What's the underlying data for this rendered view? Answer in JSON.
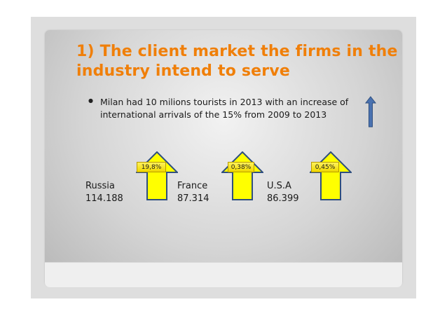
{
  "slide": {
    "title": "1) The client market the firms in the industry intend to serve",
    "bullet": "Milan had 10 milions tourists  in 2013 with an increase of international arrivals of the 15% from 2009 to 2013",
    "markets": [
      {
        "country": "Russia",
        "value": "114.188",
        "badge": "19,8%"
      },
      {
        "country": "France",
        "value": "87.314",
        "badge": "0,38%"
      },
      {
        "country": "U.S.A",
        "value": "86.399",
        "badge": "0,45%"
      }
    ]
  },
  "colors": {
    "title": "#f07f09",
    "arrow_fill": "#ffff00",
    "arrow_stroke": "#2f4f7f",
    "side_arrow": "#4a72b0"
  },
  "icons": {
    "big_arrow": "up-arrow-icon",
    "side_arrow": "thin-up-arrow-icon"
  }
}
